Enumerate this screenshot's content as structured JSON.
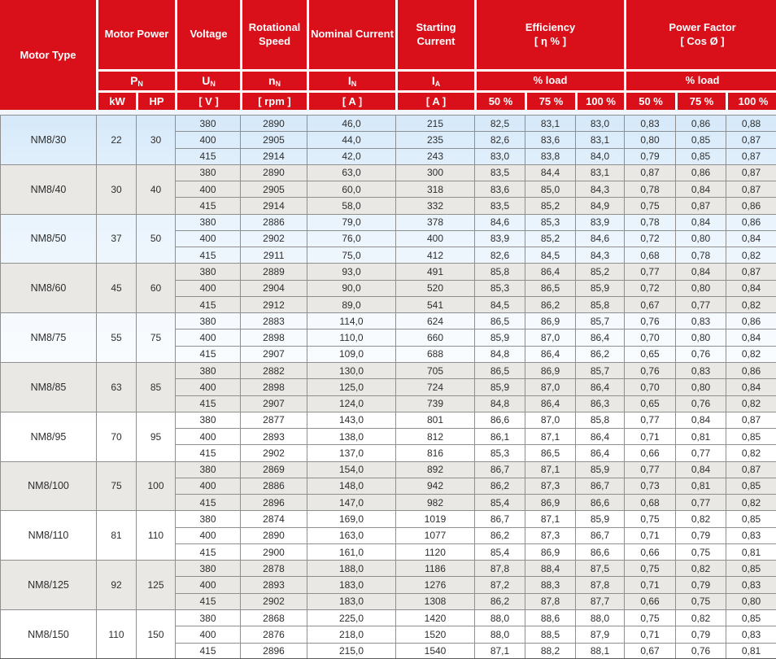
{
  "colors": {
    "header_red": "#d90f1a",
    "grid": "#8f8f8f",
    "body_text": "#2e2e2e",
    "even_bg": "#e9e8e5"
  },
  "header": {
    "motor_type": "Motor Type",
    "motor_power": "Motor Power",
    "voltage": "Voltage",
    "rotational_speed": "Rotational Speed",
    "nominal_current": "Nominal Current",
    "starting_current": "Starting Current",
    "efficiency_line1": "Efficiency",
    "efficiency_line2": "[ η % ]",
    "power_factor_line1": "Power Factor",
    "power_factor_line2": "[ Cos Ø ]",
    "percent_load": "% load",
    "symbols": {
      "pn": {
        "base": "P",
        "sub": "N"
      },
      "un": {
        "base": "U",
        "sub": "N"
      },
      "nn": {
        "base": "n",
        "sub": "N"
      },
      "in": {
        "base": "I",
        "sub": "N"
      },
      "ia": {
        "base": "I",
        "sub": "A"
      }
    },
    "units": {
      "kw": "kW",
      "hp": "HP",
      "v": "[ V ]",
      "rpm": "[ rpm ]",
      "a": "[ A ]"
    },
    "load_cols": [
      "50 %",
      "75 %",
      "100 %"
    ]
  },
  "table": {
    "groups": [
      {
        "motor_type": "NM8/30",
        "kw": "22",
        "hp": "30",
        "rows": [
          [
            "380",
            "2890",
            "46,0",
            "215",
            "82,5",
            "83,1",
            "83,0",
            "0,83",
            "0,86",
            "0,88"
          ],
          [
            "400",
            "2905",
            "44,0",
            "235",
            "82,6",
            "83,6",
            "83,1",
            "0,80",
            "0,85",
            "0,87"
          ],
          [
            "415",
            "2914",
            "42,0",
            "243",
            "83,0",
            "83,8",
            "84,0",
            "0,79",
            "0,85",
            "0,87"
          ]
        ]
      },
      {
        "motor_type": "NM8/40",
        "kw": "30",
        "hp": "40",
        "rows": [
          [
            "380",
            "2890",
            "63,0",
            "300",
            "83,5",
            "84,4",
            "83,1",
            "0,87",
            "0,86",
            "0,87"
          ],
          [
            "400",
            "2905",
            "60,0",
            "318",
            "83,6",
            "85,0",
            "84,3",
            "0,78",
            "0,84",
            "0,87"
          ],
          [
            "415",
            "2914",
            "58,0",
            "332",
            "83,5",
            "85,2",
            "84,9",
            "0,75",
            "0,87",
            "0,86"
          ]
        ]
      },
      {
        "motor_type": "NM8/50",
        "kw": "37",
        "hp": "50",
        "rows": [
          [
            "380",
            "2886",
            "79,0",
            "378",
            "84,6",
            "85,3",
            "83,9",
            "0,78",
            "0,84",
            "0,86"
          ],
          [
            "400",
            "2902",
            "76,0",
            "400",
            "83,9",
            "85,2",
            "84,6",
            "0,72",
            "0,80",
            "0,84"
          ],
          [
            "415",
            "2911",
            "75,0",
            "412",
            "82,6",
            "84,5",
            "84,3",
            "0,68",
            "0,78",
            "0,82"
          ]
        ]
      },
      {
        "motor_type": "NM8/60",
        "kw": "45",
        "hp": "60",
        "rows": [
          [
            "380",
            "2889",
            "93,0",
            "491",
            "85,8",
            "86,4",
            "85,2",
            "0,77",
            "0,84",
            "0,87"
          ],
          [
            "400",
            "2904",
            "90,0",
            "520",
            "85,3",
            "86,5",
            "85,9",
            "0,72",
            "0,80",
            "0,84"
          ],
          [
            "415",
            "2912",
            "89,0",
            "541",
            "84,5",
            "86,2",
            "85,8",
            "0,67",
            "0,77",
            "0,82"
          ]
        ]
      },
      {
        "motor_type": "NM8/75",
        "kw": "55",
        "hp": "75",
        "rows": [
          [
            "380",
            "2883",
            "114,0",
            "624",
            "86,5",
            "86,9",
            "85,7",
            "0,76",
            "0,83",
            "0,86"
          ],
          [
            "400",
            "2898",
            "110,0",
            "660",
            "85,9",
            "87,0",
            "86,4",
            "0,70",
            "0,80",
            "0,84"
          ],
          [
            "415",
            "2907",
            "109,0",
            "688",
            "84,8",
            "86,4",
            "86,2",
            "0,65",
            "0,76",
            "0,82"
          ]
        ]
      },
      {
        "motor_type": "NM8/85",
        "kw": "63",
        "hp": "85",
        "rows": [
          [
            "380",
            "2882",
            "130,0",
            "705",
            "86,5",
            "86,9",
            "85,7",
            "0,76",
            "0,83",
            "0,86"
          ],
          [
            "400",
            "2898",
            "125,0",
            "724",
            "85,9",
            "87,0",
            "86,4",
            "0,70",
            "0,80",
            "0,84"
          ],
          [
            "415",
            "2907",
            "124,0",
            "739",
            "84,8",
            "86,4",
            "86,3",
            "0,65",
            "0,76",
            "0,82"
          ]
        ]
      },
      {
        "motor_type": "NM8/95",
        "kw": "70",
        "hp": "95",
        "rows": [
          [
            "380",
            "2877",
            "143,0",
            "801",
            "86,6",
            "87,0",
            "85,8",
            "0,77",
            "0,84",
            "0,87"
          ],
          [
            "400",
            "2893",
            "138,0",
            "812",
            "86,1",
            "87,1",
            "86,4",
            "0,71",
            "0,81",
            "0,85"
          ],
          [
            "415",
            "2902",
            "137,0",
            "816",
            "85,3",
            "86,5",
            "86,4",
            "0,66",
            "0,77",
            "0,82"
          ]
        ]
      },
      {
        "motor_type": "NM8/100",
        "kw": "75",
        "hp": "100",
        "rows": [
          [
            "380",
            "2869",
            "154,0",
            "892",
            "86,7",
            "87,1",
            "85,9",
            "0,77",
            "0,84",
            "0,87"
          ],
          [
            "400",
            "2886",
            "148,0",
            "942",
            "86,2",
            "87,3",
            "86,7",
            "0,73",
            "0,81",
            "0,85"
          ],
          [
            "415",
            "2896",
            "147,0",
            "982",
            "85,4",
            "86,9",
            "86,6",
            "0,68",
            "0,77",
            "0,82"
          ]
        ]
      },
      {
        "motor_type": "NM8/110",
        "kw": "81",
        "hp": "110",
        "rows": [
          [
            "380",
            "2874",
            "169,0",
            "1019",
            "86,7",
            "87,1",
            "85,9",
            "0,75",
            "0,82",
            "0,85"
          ],
          [
            "400",
            "2890",
            "163,0",
            "1077",
            "86,2",
            "87,3",
            "86,7",
            "0,71",
            "0,79",
            "0,83"
          ],
          [
            "415",
            "2900",
            "161,0",
            "1120",
            "85,4",
            "86,9",
            "86,6",
            "0,66",
            "0,75",
            "0,81"
          ]
        ]
      },
      {
        "motor_type": "NM8/125",
        "kw": "92",
        "hp": "125",
        "rows": [
          [
            "380",
            "2878",
            "188,0",
            "1186",
            "87,8",
            "88,4",
            "87,5",
            "0,75",
            "0,82",
            "0,85"
          ],
          [
            "400",
            "2893",
            "183,0",
            "1276",
            "87,2",
            "88,3",
            "87,8",
            "0,71",
            "0,79",
            "0,83"
          ],
          [
            "415",
            "2902",
            "183,0",
            "1308",
            "86,2",
            "87,8",
            "87,7",
            "0,66",
            "0,75",
            "0,80"
          ]
        ]
      },
      {
        "motor_type": "NM8/150",
        "kw": "110",
        "hp": "150",
        "rows": [
          [
            "380",
            "2868",
            "225,0",
            "1420",
            "88,0",
            "88,6",
            "88,0",
            "0,75",
            "0,82",
            "0,85"
          ],
          [
            "400",
            "2876",
            "218,0",
            "1520",
            "88,0",
            "88,5",
            "87,9",
            "0,71",
            "0,79",
            "0,83"
          ],
          [
            "415",
            "2896",
            "215,0",
            "1540",
            "87,1",
            "88,2",
            "88,1",
            "0,67",
            "0,76",
            "0,81"
          ]
        ]
      }
    ]
  }
}
